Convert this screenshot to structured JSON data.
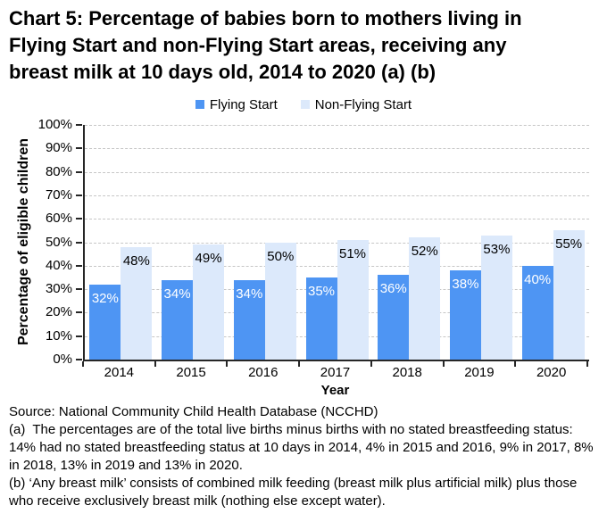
{
  "title": {
    "line1": "Chart 5: Percentage of babies born to mothers living in",
    "line2": "Flying Start and non-Flying Start areas, receiving any",
    "line3": "breast milk at 10 days old, 2014 to 2020 (a) (b)"
  },
  "colors": {
    "flying_start": "#4E95F3",
    "non_flying_start": "#DCE9FB",
    "grid": "#c6c6c6",
    "axis": "#262626"
  },
  "chart_data": {
    "type": "bar",
    "categories": [
      "2014",
      "2015",
      "2016",
      "2017",
      "2018",
      "2019",
      "2020"
    ],
    "series": [
      {
        "name": "Flying Start",
        "color": "#4E95F3",
        "label_color": "#ffffff",
        "values": [
          32,
          34,
          34,
          35,
          36,
          38,
          40
        ]
      },
      {
        "name": "Non-Flying Start",
        "color": "#DCE9FB",
        "label_color": "#000000",
        "values": [
          48,
          49,
          50,
          51,
          52,
          53,
          55
        ]
      }
    ],
    "xlabel": "Year",
    "ylabel": "Percentage of eligible children",
    "ylim": [
      0,
      100
    ],
    "ytick_step": 10,
    "ytick_suffix": "%",
    "grid": true,
    "legend_position": "top",
    "data_label_suffix": "%"
  },
  "footnotes": {
    "source": "Source: National Community Child Health Database (NCCHD)",
    "note_a": "(a)  The percentages are of the total live births minus births with no stated breastfeeding status: 14% had no stated breastfeeding status at 10 days in 2014, 4% in 2015 and 2016, 9% in 2017, 8% in 2018, 13% in 2019 and 13% in 2020.",
    "note_b": "(b) ‘Any breast milk’ consists of combined milk feeding (breast milk plus artificial milk) plus those who receive exclusively breast milk (nothing else except water)."
  }
}
